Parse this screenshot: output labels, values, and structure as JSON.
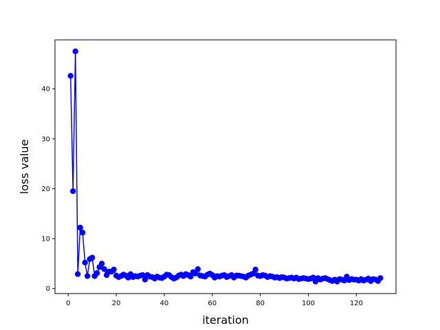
{
  "chart_data": {
    "type": "line",
    "title": "",
    "xlabel": "iteration",
    "ylabel": "loss value",
    "xlim": [
      -5.5,
      136.5
    ],
    "ylim": [
      -1.0,
      49.8
    ],
    "xticks": [
      0,
      20,
      40,
      60,
      80,
      100,
      120
    ],
    "yticks": [
      0,
      10,
      20,
      30,
      40
    ],
    "grid": false,
    "series": [
      {
        "color": "#0000ff",
        "marker": "circle",
        "x": [
          1,
          2,
          3,
          4,
          5,
          6,
          7,
          8,
          9,
          10,
          11,
          12,
          13,
          14,
          15,
          16,
          17,
          18,
          19,
          20,
          21,
          22,
          23,
          24,
          25,
          26,
          27,
          28,
          29,
          30,
          31,
          32,
          33,
          34,
          35,
          36,
          37,
          38,
          39,
          40,
          41,
          42,
          43,
          44,
          45,
          46,
          47,
          48,
          49,
          50,
          51,
          52,
          53,
          54,
          55,
          56,
          57,
          58,
          59,
          60,
          61,
          62,
          63,
          64,
          65,
          66,
          67,
          68,
          69,
          70,
          71,
          72,
          73,
          74,
          75,
          76,
          77,
          78,
          79,
          80,
          81,
          82,
          83,
          84,
          85,
          86,
          87,
          88,
          89,
          90,
          91,
          92,
          93,
          94,
          95,
          96,
          97,
          98,
          99,
          100,
          101,
          102,
          103,
          104,
          105,
          106,
          107,
          108,
          109,
          110,
          111,
          112,
          113,
          114,
          115,
          116,
          117,
          118,
          119,
          120,
          121,
          122,
          123,
          124,
          125,
          126,
          127,
          128,
          129,
          130
        ],
        "y": [
          42.6,
          19.5,
          47.5,
          2.9,
          12.2,
          11.2,
          5.2,
          2.5,
          5.9,
          6.2,
          2.5,
          3.1,
          4.3,
          5.0,
          3.9,
          2.7,
          3.4,
          3.4,
          3.8,
          2.6,
          2.3,
          2.5,
          2.8,
          2.6,
          2.2,
          2.9,
          2.3,
          2.5,
          2.4,
          2.6,
          2.7,
          1.8,
          2.7,
          2.4,
          2.3,
          2.0,
          2.4,
          2.2,
          2.1,
          2.4,
          2.8,
          2.7,
          2.3,
          2.0,
          2.2,
          2.6,
          2.8,
          2.5,
          2.9,
          2.7,
          2.4,
          3.3,
          3.0,
          3.9,
          2.6,
          2.5,
          2.4,
          2.8,
          3.0,
          2.7,
          2.2,
          2.5,
          2.4,
          2.6,
          2.7,
          2.3,
          2.5,
          2.7,
          2.2,
          2.6,
          2.6,
          2.5,
          2.4,
          2.2,
          2.6,
          2.8,
          3.0,
          3.8,
          2.6,
          2.5,
          2.7,
          2.6,
          2.3,
          2.5,
          2.4,
          2.2,
          2.3,
          2.1,
          2.3,
          2.2,
          2.0,
          2.1,
          2.2,
          2.0,
          2.2,
          1.9,
          2.0,
          2.1,
          2.0,
          1.9,
          2.0,
          2.2,
          1.4,
          2.1,
          1.8,
          2.0,
          2.1,
          1.9,
          1.7,
          1.5,
          1.8,
          1.4,
          1.9,
          1.8,
          1.6,
          2.4,
          1.7,
          1.9,
          1.8,
          1.8,
          1.6,
          1.9,
          1.6,
          1.8,
          2.0,
          1.5,
          1.9,
          1.8,
          1.5,
          2.1
        ]
      }
    ]
  }
}
